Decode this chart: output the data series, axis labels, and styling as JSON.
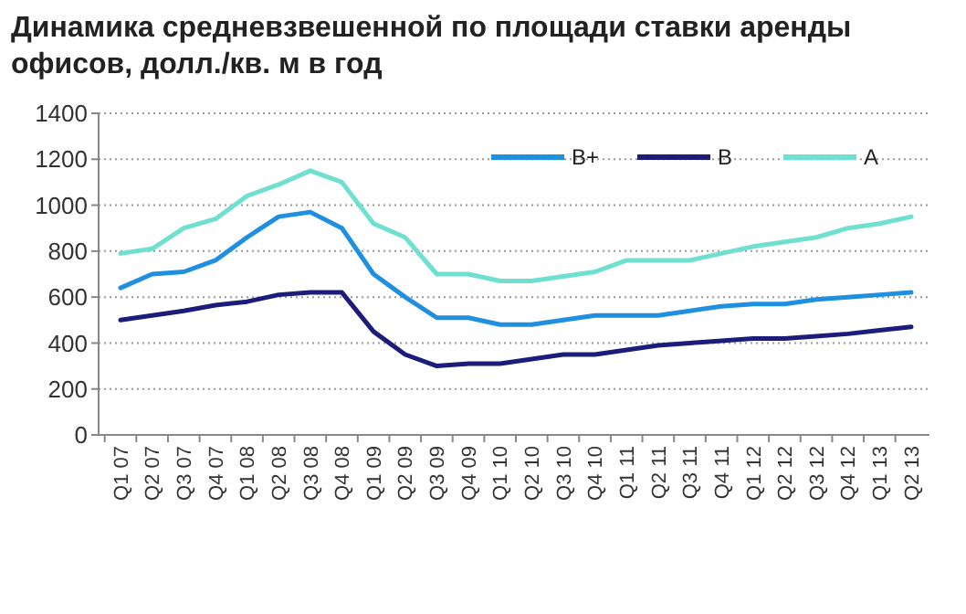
{
  "chart_data": {
    "type": "line",
    "title": "Динамика средневзвешенной по площади ставки аренды офисов, долл./кв. м в год",
    "categories": [
      "Q1 07",
      "Q2 07",
      "Q3 07",
      "Q4 07",
      "Q1 08",
      "Q2 08",
      "Q3 08",
      "Q4 08",
      "Q1 09",
      "Q2 09",
      "Q3 09",
      "Q4 09",
      "Q1 10",
      "Q2 10",
      "Q3 10",
      "Q4 10",
      "Q1 11",
      "Q2 11",
      "Q3 11",
      "Q4 11",
      "Q1 12",
      "Q2 12",
      "Q3 12",
      "Q4 12",
      "Q1 13",
      "Q2 13"
    ],
    "series": [
      {
        "name": "В+",
        "color": "#1f8fe0",
        "values": [
          640,
          700,
          710,
          760,
          860,
          950,
          970,
          900,
          700,
          600,
          510,
          510,
          480,
          480,
          500,
          520,
          520,
          520,
          540,
          560,
          570,
          570,
          590,
          600,
          610,
          620
        ]
      },
      {
        "name": "В",
        "color": "#1c1c7a",
        "values": [
          500,
          520,
          540,
          565,
          580,
          610,
          620,
          620,
          450,
          350,
          300,
          310,
          310,
          330,
          350,
          350,
          370,
          390,
          400,
          410,
          420,
          420,
          430,
          440,
          455,
          470
        ]
      },
      {
        "name": "А",
        "color": "#6fe0d0",
        "values": [
          790,
          810,
          900,
          940,
          1040,
          1090,
          1150,
          1100,
          920,
          860,
          700,
          700,
          670,
          670,
          690,
          710,
          760,
          760,
          760,
          790,
          820,
          840,
          860,
          900,
          920,
          950
        ]
      }
    ],
    "ylim": [
      0,
      1400
    ],
    "yticks": [
      0,
      200,
      400,
      600,
      800,
      1000,
      1200,
      1400
    ],
    "grid": "y",
    "legend": "top right",
    "marker": "none",
    "line_style": "solid"
  }
}
